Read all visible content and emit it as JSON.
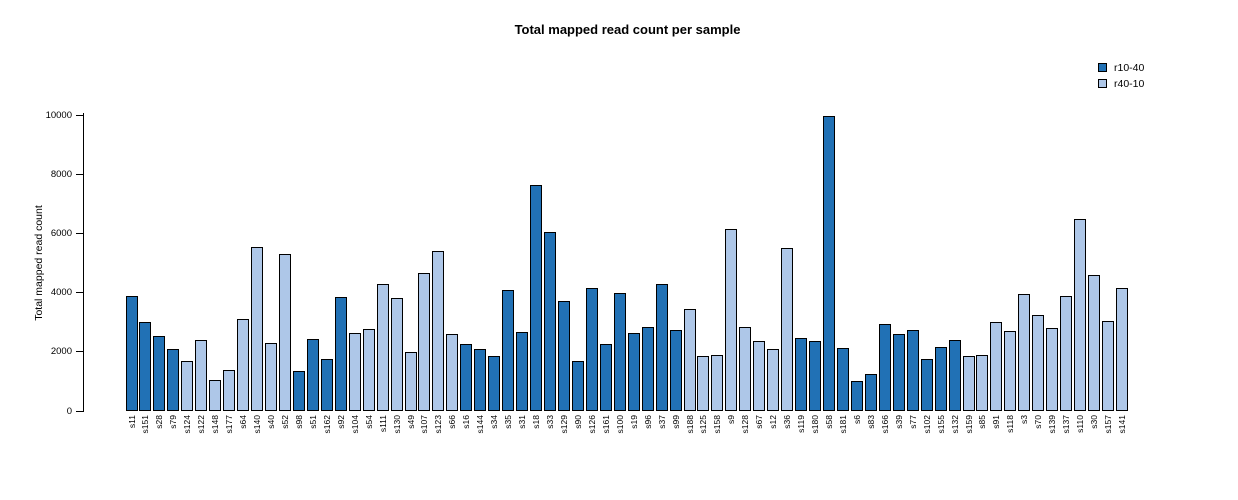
{
  "title": "Total mapped read count per sample",
  "legend": [
    {
      "label": "r10-40",
      "color": "#2171b5"
    },
    {
      "label": "r40-10",
      "color": "#aec7e8"
    }
  ],
  "chart_data": {
    "type": "bar",
    "title": "Total mapped read count per sample",
    "xlabel": "",
    "ylabel": "Total mapped read count",
    "ylim": [
      0,
      10000
    ],
    "yticks": [
      0,
      2000,
      4000,
      6000,
      8000,
      10000
    ],
    "grid": false,
    "legend_position": "top-right",
    "bar_border_color": "#000000",
    "colors": {
      "r10-40": "#2171b5",
      "r40-10": "#aec7e8"
    },
    "categories": [
      "s11",
      "s151",
      "s28",
      "s79",
      "s124",
      "s122",
      "s148",
      "s177",
      "s64",
      "s140",
      "s40",
      "s52",
      "s98",
      "s51",
      "s162",
      "s92",
      "s104",
      "s54",
      "s111",
      "s130",
      "s49",
      "s107",
      "s123",
      "s66",
      "s16",
      "s144",
      "s34",
      "s35",
      "s31",
      "s18",
      "s33",
      "s129",
      "s90",
      "s126",
      "s161",
      "s100",
      "s19",
      "s96",
      "s37",
      "s99",
      "s188",
      "s125",
      "s158",
      "s9",
      "s128",
      "s67",
      "s12",
      "s36",
      "s119",
      "s180",
      "s58",
      "s181",
      "s6",
      "s83",
      "s166",
      "s39",
      "s77",
      "s102",
      "s155",
      "s132",
      "s159",
      "s85",
      "s91",
      "s118",
      "s3",
      "s70",
      "s139",
      "s137",
      "s110",
      "s30",
      "s157",
      "s141"
    ],
    "values": [
      3900,
      3000,
      2550,
      2100,
      1700,
      2400,
      1050,
      1400,
      3100,
      5550,
      2300,
      5300,
      1350,
      2430,
      1750,
      3850,
      2630,
      2780,
      4300,
      3820,
      2000,
      4650,
      5400,
      2600,
      2250,
      2100,
      1850,
      4100,
      2680,
      7650,
      6050,
      3700,
      1700,
      4150,
      2250,
      4000,
      2650,
      2850,
      4300,
      2750,
      3450,
      1850,
      1900,
      6150,
      2850,
      2350,
      2100,
      5500,
      2450,
      2350,
      9950,
      2130,
      1000,
      1250,
      2950,
      2600,
      2750,
      1750,
      2150,
      2400,
      1850,
      1900,
      3000,
      2700,
      3950,
      3250,
      2800,
      3900,
      6500,
      4600,
      3050,
      4150
    ],
    "groups": [
      "r10-40",
      "r10-40",
      "r10-40",
      "r10-40",
      "r40-10",
      "r40-10",
      "r40-10",
      "r40-10",
      "r40-10",
      "r40-10",
      "r40-10",
      "r40-10",
      "r10-40",
      "r10-40",
      "r10-40",
      "r10-40",
      "r40-10",
      "r40-10",
      "r40-10",
      "r40-10",
      "r40-10",
      "r40-10",
      "r40-10",
      "r40-10",
      "r10-40",
      "r10-40",
      "r10-40",
      "r10-40",
      "r10-40",
      "r10-40",
      "r10-40",
      "r10-40",
      "r10-40",
      "r10-40",
      "r10-40",
      "r10-40",
      "r10-40",
      "r10-40",
      "r10-40",
      "r10-40",
      "r40-10",
      "r40-10",
      "r40-10",
      "r40-10",
      "r40-10",
      "r40-10",
      "r40-10",
      "r40-10",
      "r10-40",
      "r10-40",
      "r10-40",
      "r10-40",
      "r10-40",
      "r10-40",
      "r10-40",
      "r10-40",
      "r10-40",
      "r10-40",
      "r10-40",
      "r10-40",
      "r40-10",
      "r40-10",
      "r40-10",
      "r40-10",
      "r40-10",
      "r40-10",
      "r40-10",
      "r40-10",
      "r40-10",
      "r40-10",
      "r40-10",
      "r40-10"
    ]
  }
}
